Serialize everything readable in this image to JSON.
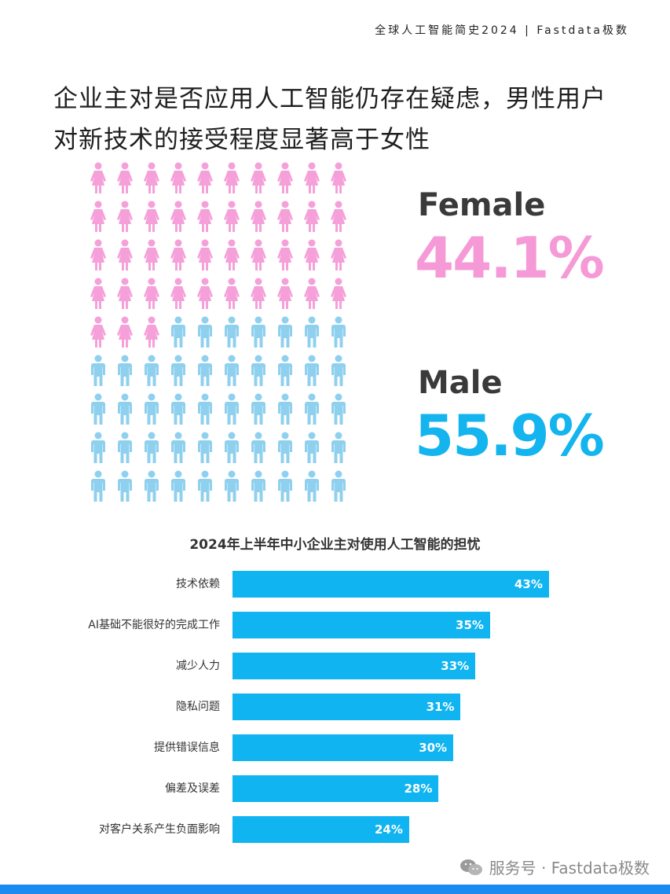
{
  "header": {
    "text": "全球人工智能简史2024 | Fastdata极数"
  },
  "headline": {
    "line1": "企业主对是否应用人工智能仍存在疑虑，男性用户",
    "line2": "对新技术的接受程度显著高于女性"
  },
  "colors": {
    "female": "#f5a0d9",
    "male": "#8fd0ef",
    "bar": "#10b4f1",
    "female_text": "#f59ad6",
    "male_text": "#14b4ef"
  },
  "gender": {
    "female": {
      "label": "Female",
      "value": "44.1%",
      "icon": "female-person-icon",
      "count": 43
    },
    "male": {
      "label": "Male",
      "value": "55.9%",
      "icon": "male-person-icon",
      "count": 47
    }
  },
  "chart_data": {
    "type": "bar",
    "orientation": "horizontal",
    "title": "2024年上半年中小企业主对使用人工智能的担忧",
    "categories": [
      "技术依赖",
      "AI基础不能很好的完成工作",
      "减少人力",
      "隐私问题",
      "提供错误信息",
      "偏差及误差",
      "对客户关系产生负面影响"
    ],
    "values": [
      43,
      35,
      33,
      31,
      30,
      28,
      24
    ],
    "value_labels": [
      "43%",
      "35%",
      "33%",
      "31%",
      "30%",
      "28%",
      "24%"
    ],
    "unit": "%",
    "grid": false,
    "legend": "none"
  },
  "watermark": {
    "text": "服务号 · Fastdata极数",
    "icon": "wechat-icon"
  }
}
